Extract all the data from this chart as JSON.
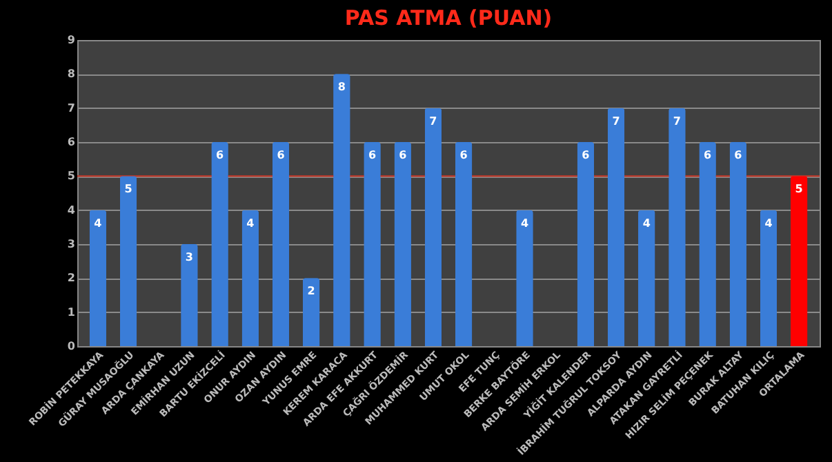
{
  "chart_data": {
    "type": "bar",
    "title": "PAS ATMA (PUAN)",
    "categories": [
      "ROBİN PETEKKAYA",
      "GÜRAY MUSAOĞLU",
      "ARDA ÇANKAYA",
      "EMİRHAN UZUN",
      "BARTU EKİZCELİ",
      "ONUR AYDIN",
      "OZAN AYDIN",
      "YUNUS EMRE",
      "KEREM KARACA",
      "ARDA EFE AKKURT",
      "ÇAĞRI ÖZDEMİR",
      "MUHAMMED KURT",
      "UMUT OKOL",
      "EFE TUNÇ",
      "BERKE BAYTÖRE",
      "ARDA SEMİH ERKOL",
      "YİĞİT KALENDER",
      "İBRAHİM TUĞRUL TOKSOY",
      "ALPARDA AYDIN",
      "ATAKAN GAYRETLİ",
      "HIZIR SELİM PEÇENEK",
      "BURAK ALTAY",
      "BATUHAN KILIÇ",
      "ORTALAMA"
    ],
    "values": [
      4,
      5,
      null,
      3,
      6,
      4,
      6,
      2,
      8,
      6,
      6,
      7,
      6,
      null,
      4,
      null,
      6,
      7,
      4,
      7,
      6,
      6,
      4,
      5
    ],
    "colors": [
      "#3a7dd8",
      "#3a7dd8",
      "#3a7dd8",
      "#3a7dd8",
      "#3a7dd8",
      "#3a7dd8",
      "#3a7dd8",
      "#3a7dd8",
      "#3a7dd8",
      "#3a7dd8",
      "#3a7dd8",
      "#3a7dd8",
      "#3a7dd8",
      "#3a7dd8",
      "#3a7dd8",
      "#3a7dd8",
      "#3a7dd8",
      "#3a7dd8",
      "#3a7dd8",
      "#3a7dd8",
      "#3a7dd8",
      "#3a7dd8",
      "#3a7dd8",
      "#ff0000"
    ],
    "ylim": [
      0,
      9
    ],
    "yticks": [
      0,
      1,
      2,
      3,
      4,
      5,
      6,
      7,
      8,
      9
    ],
    "ref_lines": [
      {
        "axis": "y",
        "value": 5,
        "color": "#c0392b"
      }
    ],
    "grid": "y",
    "data_labels": true
  }
}
